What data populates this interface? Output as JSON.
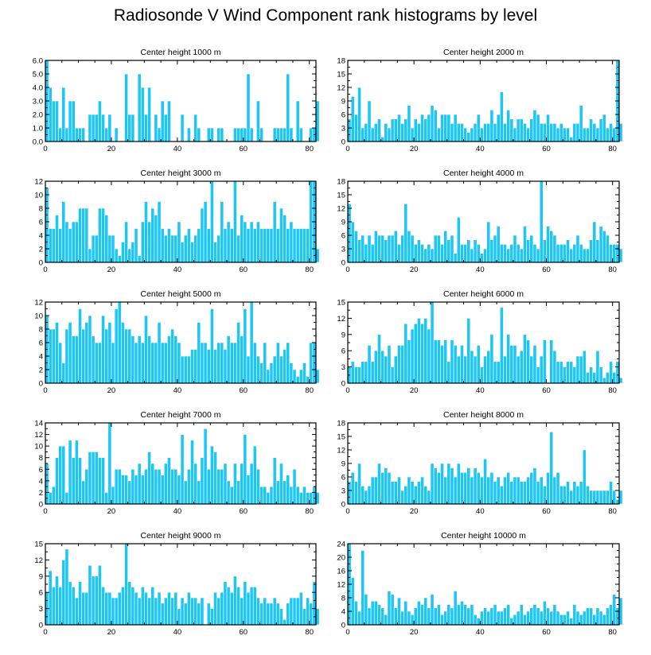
{
  "page": {
    "title": "Radiosonde V Wind Component rank histograms by level"
  },
  "colors": {
    "bar": "#1ec6f4",
    "bar_outline": "#ffffff",
    "axis": "#000000"
  },
  "chart_data": [
    {
      "type": "bar",
      "title": "Center height 1000 m",
      "xlim": [
        0,
        82
      ],
      "ylim": [
        0,
        6
      ],
      "xticks": [
        0,
        20,
        40,
        60,
        80
      ],
      "yticks": [
        0,
        1,
        2,
        3,
        4,
        5,
        6
      ],
      "ytick_labels": [
        "0.0",
        "1.0",
        "2.0",
        "3.0",
        "4.0",
        "5.0",
        "6.0"
      ],
      "values": [
        6,
        4,
        3,
        3,
        1,
        4,
        1,
        3,
        3,
        1,
        1,
        1,
        0,
        2,
        2,
        2,
        3,
        2,
        1,
        2,
        0,
        1,
        0,
        0,
        5,
        2,
        2,
        0,
        5,
        4,
        2,
        4,
        0,
        2,
        1,
        3,
        2,
        3,
        0,
        0,
        0,
        2,
        0,
        1,
        0,
        2,
        1,
        0,
        0,
        1,
        1,
        0,
        1,
        1,
        0,
        0,
        0,
        1,
        1,
        1,
        1,
        5,
        1,
        0,
        3,
        1,
        0,
        0,
        0,
        1,
        1,
        1,
        1,
        5,
        1,
        0,
        3,
        1,
        0,
        0,
        1,
        1,
        3
      ]
    },
    {
      "type": "bar",
      "title": "Center height 2000 m",
      "xlim": [
        0,
        82
      ],
      "ylim": [
        0,
        18
      ],
      "xticks": [
        0,
        20,
        40,
        60,
        80
      ],
      "yticks": [
        0,
        3,
        6,
        9,
        12,
        15,
        18
      ],
      "ytick_labels": [
        "0",
        "3",
        "6",
        "9",
        "12",
        "15",
        "18"
      ],
      "values": [
        5,
        10,
        6,
        12,
        3,
        4,
        9,
        3,
        4,
        5,
        1,
        4,
        3,
        5,
        5,
        6,
        4,
        5,
        8,
        3,
        5,
        4,
        6,
        5,
        6,
        8,
        7,
        3,
        6,
        6,
        6,
        4,
        6,
        4,
        4,
        3,
        2,
        3,
        4,
        6,
        3,
        4,
        4,
        7,
        4,
        6,
        11,
        4,
        7,
        5,
        3,
        5,
        5,
        4,
        3,
        5,
        7,
        6,
        4,
        4,
        6,
        4,
        4,
        3,
        4,
        3,
        3,
        1,
        4,
        4,
        8,
        3,
        3,
        5,
        4,
        3,
        5,
        6,
        3,
        4,
        3,
        18,
        4
      ]
    },
    {
      "type": "bar",
      "title": "Center height 3000 m",
      "xlim": [
        0,
        82
      ],
      "ylim": [
        0,
        12
      ],
      "xticks": [
        0,
        20,
        40,
        60,
        80
      ],
      "yticks": [
        0,
        2,
        4,
        6,
        8,
        10,
        12
      ],
      "ytick_labels": [
        "0",
        "2",
        "4",
        "6",
        "8",
        "10",
        "12"
      ],
      "values": [
        11,
        5,
        5,
        7,
        5,
        9,
        6,
        5,
        6,
        6,
        8,
        8,
        8,
        2,
        4,
        4,
        8,
        8,
        7,
        4,
        4,
        2,
        1,
        3,
        6,
        2,
        3,
        5,
        1,
        6,
        9,
        6,
        8,
        7,
        9,
        5,
        4,
        5,
        4,
        4,
        6,
        3,
        4,
        5,
        3,
        4,
        5,
        8,
        9,
        5,
        12,
        3,
        4,
        9,
        5,
        6,
        5,
        12,
        4,
        7,
        6,
        5,
        6,
        5,
        6,
        5,
        5,
        5,
        5,
        9,
        5,
        8,
        7,
        5,
        6,
        5,
        5,
        5,
        5,
        5,
        12,
        12,
        2
      ]
    },
    {
      "type": "bar",
      "title": "Center height 4000 m",
      "xlim": [
        0,
        82
      ],
      "ylim": [
        0,
        18
      ],
      "xticks": [
        0,
        20,
        40,
        60,
        80
      ],
      "yticks": [
        0,
        3,
        6,
        9,
        12,
        15,
        18
      ],
      "ytick_labels": [
        "0",
        "3",
        "6",
        "9",
        "12",
        "15",
        "18"
      ],
      "values": [
        13,
        9,
        7,
        5,
        6,
        4,
        6,
        4,
        7,
        6,
        6,
        5,
        6,
        6,
        7,
        4,
        6,
        13,
        7,
        6,
        4,
        5,
        4,
        3,
        4,
        3,
        6,
        6,
        4,
        7,
        5,
        6,
        2,
        10,
        4,
        4,
        5,
        3,
        5,
        4,
        2,
        3,
        9,
        5,
        6,
        8,
        4,
        4,
        3,
        4,
        6,
        4,
        3,
        8,
        5,
        6,
        4,
        3,
        18,
        5,
        8,
        7,
        6,
        4,
        4,
        4,
        5,
        3,
        4,
        6,
        4,
        3,
        3,
        5,
        9,
        5,
        8,
        7,
        6,
        4,
        4,
        4,
        3
      ]
    },
    {
      "type": "bar",
      "title": "Center height 5000 m",
      "xlim": [
        0,
        82
      ],
      "ylim": [
        0,
        12
      ],
      "xticks": [
        0,
        20,
        40,
        60,
        80
      ],
      "yticks": [
        0,
        2,
        4,
        6,
        8,
        10,
        12
      ],
      "ytick_labels": [
        "0",
        "2",
        "4",
        "6",
        "8",
        "10",
        "12"
      ],
      "values": [
        10,
        8,
        8,
        9,
        6,
        3,
        8,
        9,
        7,
        7,
        11,
        8,
        9,
        10,
        7,
        6,
        6,
        10,
        8,
        9,
        6,
        11,
        12,
        9,
        8,
        8,
        7,
        6,
        7,
        6,
        10,
        7,
        6,
        6,
        9,
        6,
        6,
        7,
        8,
        7,
        6,
        4,
        4,
        4,
        5,
        5,
        9,
        6,
        6,
        5,
        11,
        5,
        6,
        6,
        5,
        7,
        6,
        6,
        9,
        7,
        11,
        4,
        12,
        6,
        4,
        3,
        6,
        2,
        3,
        4,
        6,
        4,
        5,
        6,
        3,
        2,
        1,
        2,
        3,
        1,
        6,
        6,
        2
      ]
    },
    {
      "type": "bar",
      "title": "Center height 6000 m",
      "xlim": [
        0,
        82
      ],
      "ylim": [
        0,
        15
      ],
      "xticks": [
        0,
        20,
        40,
        60,
        80
      ],
      "yticks": [
        0,
        3,
        6,
        9,
        12,
        15
      ],
      "ytick_labels": [
        "0",
        "3",
        "6",
        "9",
        "12",
        "15"
      ],
      "values": [
        3,
        4,
        3,
        3,
        4,
        4,
        7,
        4,
        6,
        9,
        6,
        5,
        7,
        3,
        5,
        7,
        7,
        11,
        8,
        10,
        11,
        12,
        11,
        12,
        10,
        15,
        8,
        8,
        7,
        8,
        4,
        8,
        7,
        5,
        7,
        5,
        12,
        6,
        5,
        7,
        3,
        5,
        6,
        9,
        4,
        4,
        14,
        5,
        9,
        7,
        7,
        5,
        6,
        9,
        8,
        5,
        7,
        3,
        5,
        8,
        0,
        8,
        6,
        4,
        4,
        3,
        4,
        4,
        3,
        5,
        5,
        6,
        2,
        3,
        2,
        6,
        3,
        1,
        2,
        4,
        2,
        4,
        1
      ]
    },
    {
      "type": "bar",
      "title": "Center height 7000 m",
      "xlim": [
        0,
        82
      ],
      "ylim": [
        0,
        14
      ],
      "xticks": [
        0,
        20,
        40,
        60,
        80
      ],
      "yticks": [
        0,
        2,
        4,
        6,
        8,
        10,
        12,
        14
      ],
      "ytick_labels": [
        "0",
        "2",
        "4",
        "6",
        "8",
        "10",
        "12",
        "14"
      ],
      "values": [
        7,
        2,
        3,
        8,
        10,
        10,
        2,
        11,
        8,
        11,
        8,
        4,
        6,
        9,
        9,
        9,
        8,
        8,
        2,
        14,
        3,
        6,
        6,
        5,
        5,
        4,
        6,
        5,
        7,
        5,
        6,
        9,
        7,
        6,
        6,
        5,
        7,
        8,
        6,
        6,
        5,
        12,
        4,
        6,
        11,
        7,
        4,
        8,
        13,
        6,
        10,
        9,
        6,
        6,
        7,
        4,
        3,
        7,
        4,
        7,
        12,
        5,
        7,
        10,
        6,
        3,
        3,
        2,
        3,
        8,
        4,
        7,
        4,
        5,
        3,
        6,
        3,
        2,
        3,
        2,
        2,
        3,
        2
      ]
    },
    {
      "type": "bar",
      "title": "Center height 8000 m",
      "xlim": [
        0,
        82
      ],
      "ylim": [
        0,
        18
      ],
      "xticks": [
        0,
        20,
        40,
        60,
        80
      ],
      "yticks": [
        0,
        3,
        6,
        9,
        12,
        15,
        18
      ],
      "ytick_labels": [
        "0",
        "3",
        "6",
        "9",
        "12",
        "15",
        "18"
      ],
      "values": [
        5,
        7,
        5,
        9,
        4,
        3,
        4,
        6,
        6,
        9,
        7,
        8,
        7,
        5,
        5,
        6,
        3,
        4,
        6,
        5,
        4,
        5,
        6,
        4,
        3,
        9,
        8,
        7,
        9,
        6,
        9,
        8,
        6,
        9,
        7,
        7,
        8,
        6,
        8,
        7,
        6,
        10,
        6,
        7,
        5,
        6,
        4,
        6,
        7,
        5,
        6,
        6,
        5,
        5,
        6,
        7,
        8,
        5,
        6,
        4,
        7,
        16,
        6,
        7,
        4,
        4,
        5,
        3,
        5,
        4,
        5,
        12,
        4,
        3,
        3,
        3,
        3,
        3,
        3,
        5,
        3,
        1,
        3
      ]
    },
    {
      "type": "bar",
      "title": "Center height 9000 m",
      "xlim": [
        0,
        82
      ],
      "ylim": [
        0,
        15
      ],
      "xticks": [
        0,
        20,
        40,
        60,
        80
      ],
      "yticks": [
        0,
        3,
        6,
        9,
        12,
        15
      ],
      "ytick_labels": [
        "0",
        "3",
        "6",
        "9",
        "12",
        "15"
      ],
      "values": [
        6,
        10,
        7,
        9,
        7,
        12,
        14,
        8,
        7,
        5,
        8,
        6,
        6,
        11,
        9,
        9,
        11,
        7,
        6,
        6,
        5,
        5,
        6,
        7,
        15,
        8,
        7,
        6,
        5,
        7,
        6,
        5,
        7,
        5,
        6,
        4,
        5,
        6,
        5,
        6,
        3,
        5,
        4,
        6,
        5,
        5,
        4,
        5,
        0,
        4,
        3,
        6,
        5,
        6,
        8,
        7,
        6,
        9,
        7,
        5,
        8,
        6,
        7,
        7,
        5,
        4,
        5,
        4,
        4,
        5,
        4,
        3,
        1,
        4,
        5,
        5,
        5,
        6,
        3,
        5,
        4,
        8,
        3
      ]
    },
    {
      "type": "bar",
      "title": "Center height 10000 m",
      "xlim": [
        0,
        82
      ],
      "ylim": [
        0,
        24
      ],
      "xticks": [
        0,
        20,
        40,
        60,
        80
      ],
      "yticks": [
        0,
        4,
        8,
        12,
        16,
        20,
        24
      ],
      "ytick_labels": [
        "0",
        "4",
        "8",
        "12",
        "16",
        "20",
        "24"
      ],
      "values": [
        24,
        14,
        7,
        4,
        22,
        9,
        5,
        7,
        7,
        6,
        5,
        3,
        10,
        9,
        5,
        8,
        4,
        7,
        4,
        3,
        5,
        7,
        6,
        8,
        5,
        9,
        5,
        6,
        3,
        4,
        6,
        5,
        10,
        6,
        7,
        6,
        5,
        6,
        3,
        2,
        4,
        5,
        4,
        5,
        6,
        4,
        4,
        5,
        6,
        2,
        3,
        4,
        6,
        3,
        4,
        5,
        6,
        5,
        4,
        7,
        5,
        4,
        6,
        4,
        3,
        3,
        4,
        2,
        6,
        4,
        3,
        4,
        5,
        5,
        3,
        5,
        4,
        3,
        5,
        6,
        9,
        5,
        8
      ]
    }
  ]
}
